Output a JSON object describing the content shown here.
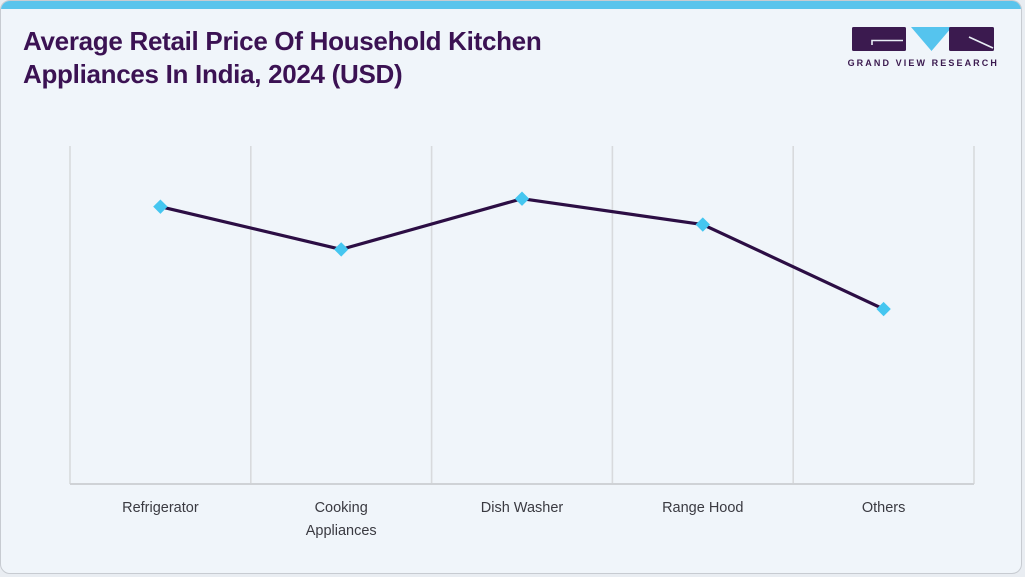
{
  "header": {
    "title": "Average Retail Price Of Household Kitchen Appliances In India, 2024 (USD)",
    "title_color": "#3b1253"
  },
  "logo": {
    "text": "GRAND VIEW RESEARCH",
    "dark_color": "#3b1a4f",
    "blue_color": "#55c4ee"
  },
  "card": {
    "background": "#f0f5fa",
    "accent_bar_color": "#5ac4ec",
    "border_color": "#c7cbd1"
  },
  "chart_data": {
    "type": "line",
    "title": "Average Retail Price Of Household Kitchen Appliances In India, 2024 (USD)",
    "categories": [
      "Refrigerator",
      "Cooking Appliances",
      "Dish Washer",
      "Range Hood",
      "Others"
    ],
    "values": [
      279,
      236,
      287,
      261,
      176
    ],
    "units": "USD",
    "xlabel": "",
    "ylabel": "",
    "ylim": [
      0,
      340
    ],
    "y_axis_labels_visible": false,
    "grid": "vertical-only",
    "legend": "none",
    "line_color": "#2c0e44",
    "line_width": 3.2,
    "marker": "diamond",
    "marker_color": "#45c6f0",
    "gridline_color": "#d8dadd",
    "axis_line_color": "#cfd2d6",
    "label_color": "#3a3a41"
  }
}
